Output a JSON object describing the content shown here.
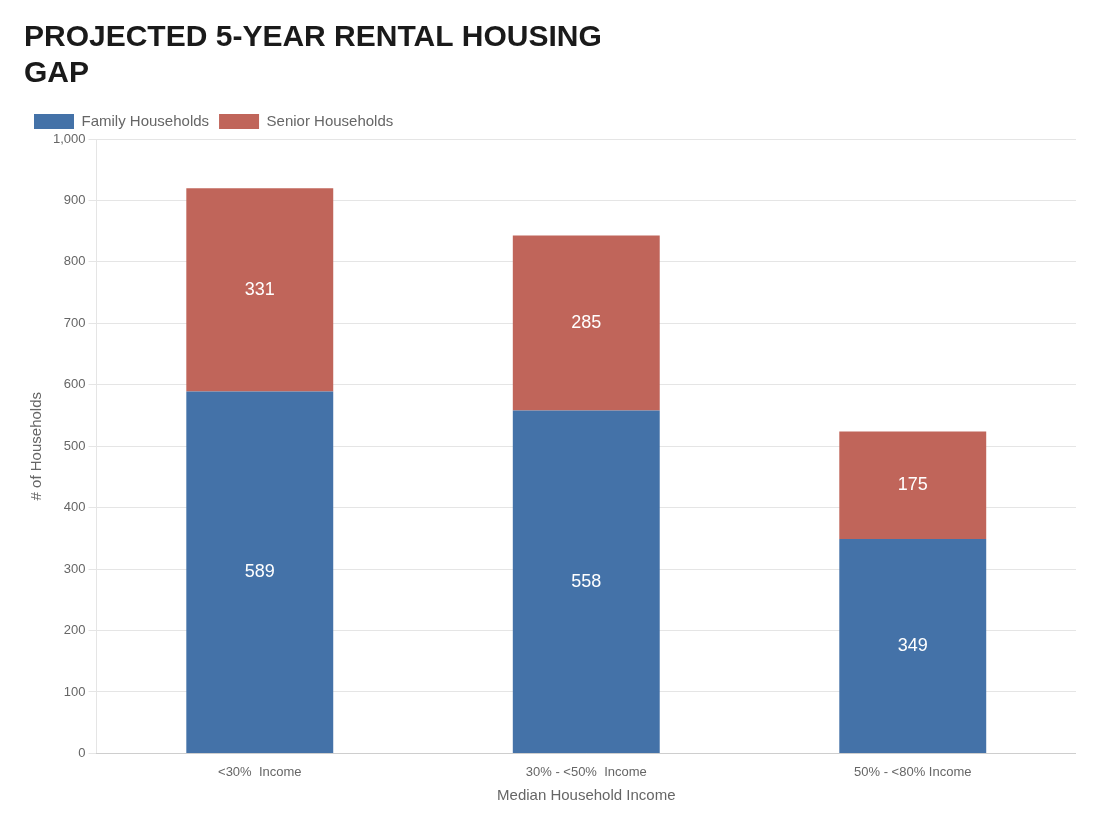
{
  "chart_data": {
    "type": "bar",
    "stacked": true,
    "title": [
      "PROJECTED 5-YEAR RENTAL HOUSING",
      "GAP"
    ],
    "categories": [
      "<30%  Income",
      "30% - <50%  Income",
      "50% - <80% Income"
    ],
    "series": [
      {
        "name": "Family Households",
        "color": "#4472A8",
        "values": [
          589,
          558,
          349
        ]
      },
      {
        "name": "Senior Households",
        "color": "#C0655A",
        "values": [
          331,
          285,
          175
        ]
      }
    ],
    "xlabel": "Median Household Income",
    "ylabel": "# of Households",
    "ylim": [
      0,
      1000
    ],
    "yticks": [
      0,
      100,
      200,
      300,
      400,
      500,
      600,
      700,
      800,
      900,
      {
        "value": 1000,
        "label": "1,000"
      }
    ],
    "grid": true,
    "legend": "top",
    "data_labels": true
  }
}
